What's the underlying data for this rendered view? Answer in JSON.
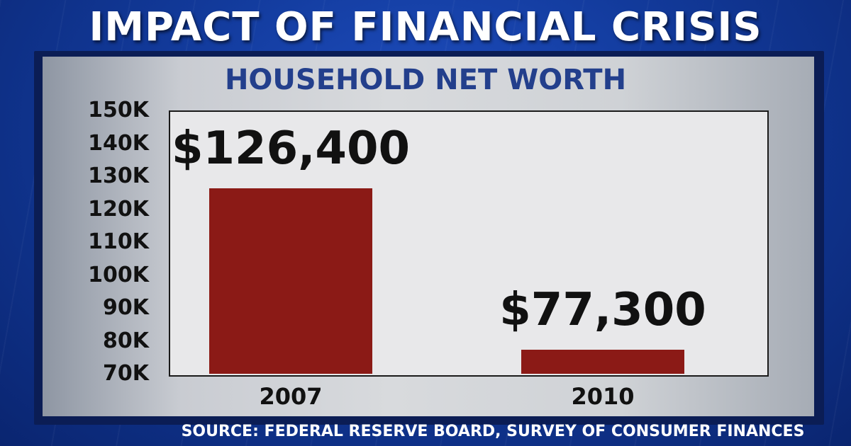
{
  "header": {
    "title": "IMPACT OF FINANCIAL CRISIS"
  },
  "source": "SOURCE: FEDERAL RESERVE BOARD, SURVEY OF CONSUMER FINANCES",
  "chart_data": {
    "type": "bar",
    "title": "HOUSEHOLD NET WORTH",
    "categories": [
      "2007",
      "2010"
    ],
    "values": [
      126400,
      77300
    ],
    "value_labels": [
      "$126,400",
      "$77,300"
    ],
    "yticks": [
      70000,
      80000,
      90000,
      100000,
      110000,
      120000,
      130000,
      140000,
      150000
    ],
    "ytick_labels": [
      "70K",
      "80K",
      "90K",
      "100K",
      "110K",
      "120K",
      "130K",
      "140K",
      "150K"
    ],
    "ylim": [
      70000,
      150000
    ],
    "xlabel": "",
    "ylabel": "",
    "grid": false,
    "bar_color": "#8b1a16"
  }
}
